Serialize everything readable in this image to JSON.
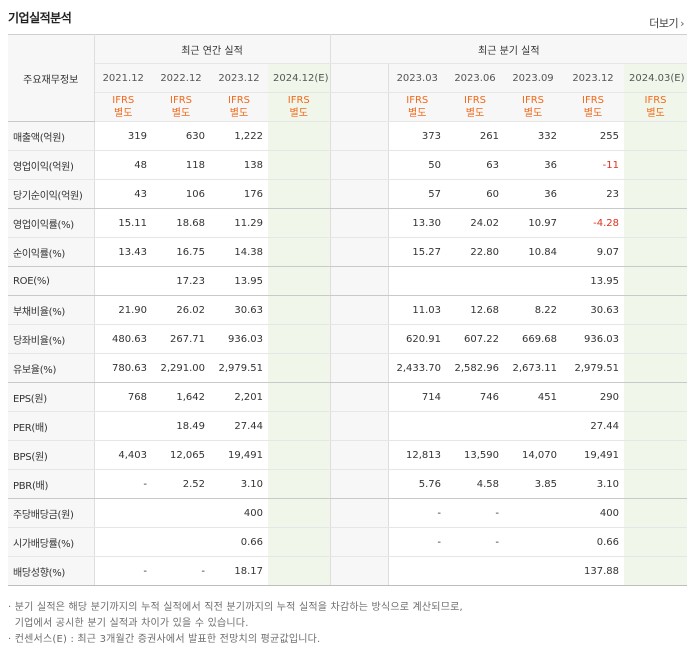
{
  "section_title": "기업실적분석",
  "more_link": "더보기",
  "more_arrow": "›",
  "corner_label": "주요재무정보",
  "annual_header": "최근 연간 실적",
  "quarter_header": "최근 분기 실적",
  "annual_periods": [
    "2021.12",
    "2022.12",
    "2023.12",
    "2024.12(E)"
  ],
  "quarter_periods": [
    "2023.03",
    "2023.06",
    "2023.09",
    "2023.12",
    "2024.03(E)"
  ],
  "basis_line1": "IFRS",
  "basis_line2": "별도",
  "rows": [
    {
      "label": "매출액(억원)",
      "annual": [
        "319",
        "630",
        "1,222",
        ""
      ],
      "quarter": [
        "373",
        "261",
        "332",
        "255",
        ""
      ]
    },
    {
      "label": "영업이익(억원)",
      "annual": [
        "48",
        "118",
        "138",
        ""
      ],
      "quarter": [
        "50",
        "63",
        "36",
        "-11",
        ""
      ]
    },
    {
      "label": "당기순이익(억원)",
      "annual": [
        "43",
        "106",
        "176",
        ""
      ],
      "quarter": [
        "57",
        "60",
        "36",
        "23",
        ""
      ]
    },
    {
      "label": "영업이익률(%)",
      "annual": [
        "15.11",
        "18.68",
        "11.29",
        ""
      ],
      "quarter": [
        "13.30",
        "24.02",
        "10.97",
        "-4.28",
        ""
      ]
    },
    {
      "label": "순이익률(%)",
      "annual": [
        "13.43",
        "16.75",
        "14.38",
        ""
      ],
      "quarter": [
        "15.27",
        "22.80",
        "10.84",
        "9.07",
        ""
      ]
    },
    {
      "label": "ROE(%)",
      "annual": [
        "",
        "17.23",
        "13.95",
        ""
      ],
      "quarter": [
        "",
        "",
        "",
        "13.95",
        ""
      ]
    },
    {
      "label": "부채비율(%)",
      "annual": [
        "21.90",
        "26.02",
        "30.63",
        ""
      ],
      "quarter": [
        "11.03",
        "12.68",
        "8.22",
        "30.63",
        ""
      ]
    },
    {
      "label": "당좌비율(%)",
      "annual": [
        "480.63",
        "267.71",
        "936.03",
        ""
      ],
      "quarter": [
        "620.91",
        "607.22",
        "669.68",
        "936.03",
        ""
      ]
    },
    {
      "label": "유보율(%)",
      "annual": [
        "780.63",
        "2,291.00",
        "2,979.51",
        ""
      ],
      "quarter": [
        "2,433.70",
        "2,582.96",
        "2,673.11",
        "2,979.51",
        ""
      ]
    },
    {
      "label": "EPS(원)",
      "annual": [
        "768",
        "1,642",
        "2,201",
        ""
      ],
      "quarter": [
        "714",
        "746",
        "451",
        "290",
        ""
      ]
    },
    {
      "label": "PER(배)",
      "annual": [
        "",
        "18.49",
        "27.44",
        ""
      ],
      "quarter": [
        "",
        "",
        "",
        "27.44",
        ""
      ]
    },
    {
      "label": "BPS(원)",
      "annual": [
        "4,403",
        "12,065",
        "19,491",
        ""
      ],
      "quarter": [
        "12,813",
        "13,590",
        "14,070",
        "19,491",
        ""
      ]
    },
    {
      "label": "PBR(배)",
      "annual": [
        "-",
        "2.52",
        "3.10",
        ""
      ],
      "quarter": [
        "5.76",
        "4.58",
        "3.85",
        "3.10",
        ""
      ]
    },
    {
      "label": "주당배당금(원)",
      "annual": [
        "",
        "",
        "400",
        ""
      ],
      "quarter": [
        "-",
        "-",
        "",
        "400",
        ""
      ]
    },
    {
      "label": "시가배당률(%)",
      "annual": [
        "",
        "",
        "0.66",
        ""
      ],
      "quarter": [
        "-",
        "-",
        "",
        "0.66",
        ""
      ]
    },
    {
      "label": "배당성향(%)",
      "annual": [
        "-",
        "-",
        "18.17",
        ""
      ],
      "quarter": [
        "",
        "",
        "",
        "137.88",
        ""
      ]
    }
  ],
  "notes": [
    "· 분기 실적은 해당 분기까지의 누적 실적에서 직전 분기까지의 누적 실적을 차감하는 방식으로 계산되므로,",
    "  기업에서 공시한 분기 실적과 차이가 있을 수 있습니다.",
    "· 컨센서스(E) : 최근 3개월간 증권사에서 발표한 전망치의 평균값입니다."
  ],
  "colors": {
    "accent": "#f26a1b",
    "negative": "#e0301e",
    "estimate_bg": "#f0f7ea",
    "header_bg": "#f7f7f7"
  }
}
